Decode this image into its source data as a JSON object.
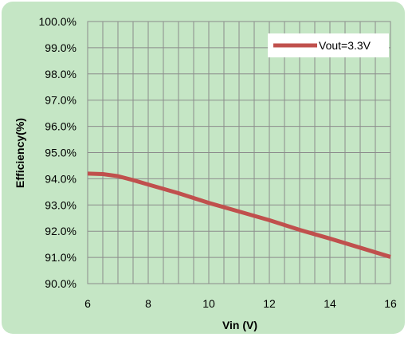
{
  "chart_data": {
    "type": "line",
    "title": "",
    "xlabel": "Vin (V)",
    "ylabel": "Efficiency(%)",
    "xlim": [
      6,
      16
    ],
    "ylim": [
      90.0,
      100.0
    ],
    "x_ticks": [
      6,
      8,
      10,
      12,
      14,
      16
    ],
    "x_minor_step": 0.5,
    "y_ticks": [
      "90.0%",
      "91.0%",
      "92.0%",
      "93.0%",
      "94.0%",
      "95.0%",
      "96.0%",
      "97.0%",
      "98.0%",
      "99.0%",
      "100.0%"
    ],
    "grid": true,
    "legend_position": "top-right",
    "series": [
      {
        "name": "Vout=3.3V",
        "color": "#c0504d",
        "x": [
          6.0,
          6.5,
          7.0,
          7.5,
          8.0,
          9.0,
          10.0,
          11.0,
          12.0,
          13.0,
          14.0,
          15.0,
          16.0
        ],
        "y": [
          94.2,
          94.18,
          94.1,
          93.95,
          93.78,
          93.45,
          93.08,
          92.75,
          92.42,
          92.05,
          91.72,
          91.37,
          91.02
        ]
      }
    ]
  },
  "colors": {
    "background": "#c5e6c5",
    "plot_area": "#c5e6c5",
    "grid": "#8c8c8c"
  }
}
